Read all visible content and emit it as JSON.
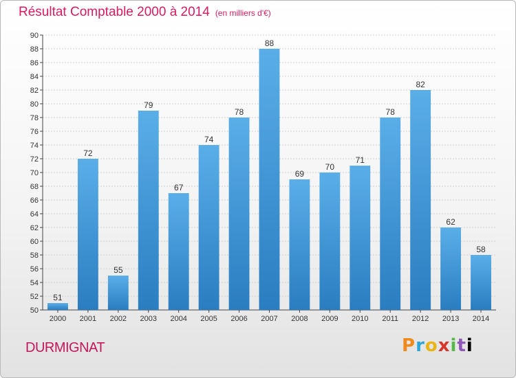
{
  "title": "Résultat Comptable 2000 à 2014",
  "subtitle": "(en milliers d'€)",
  "location": "DURMIGNAT",
  "logo": {
    "letters": [
      "P",
      "r",
      "o",
      "x",
      "i",
      "t",
      "i"
    ]
  },
  "colors": {
    "title": "#d81b60",
    "bar_top": "#5aaee8",
    "bar_bottom": "#2a7dc0",
    "axis": "#444444",
    "grid": "#d0d0d0"
  },
  "chart_data": {
    "type": "bar",
    "categories": [
      "2000",
      "2001",
      "2002",
      "2003",
      "2004",
      "2005",
      "2006",
      "2007",
      "2008",
      "2009",
      "2010",
      "2011",
      "2012",
      "2013",
      "2014"
    ],
    "values": [
      51,
      72,
      55,
      79,
      67,
      74,
      78,
      88,
      69,
      70,
      71,
      78,
      82,
      62,
      58
    ],
    "ylim": [
      50,
      90
    ],
    "ytick_step": 2,
    "grid": true,
    "data_labels": true
  }
}
